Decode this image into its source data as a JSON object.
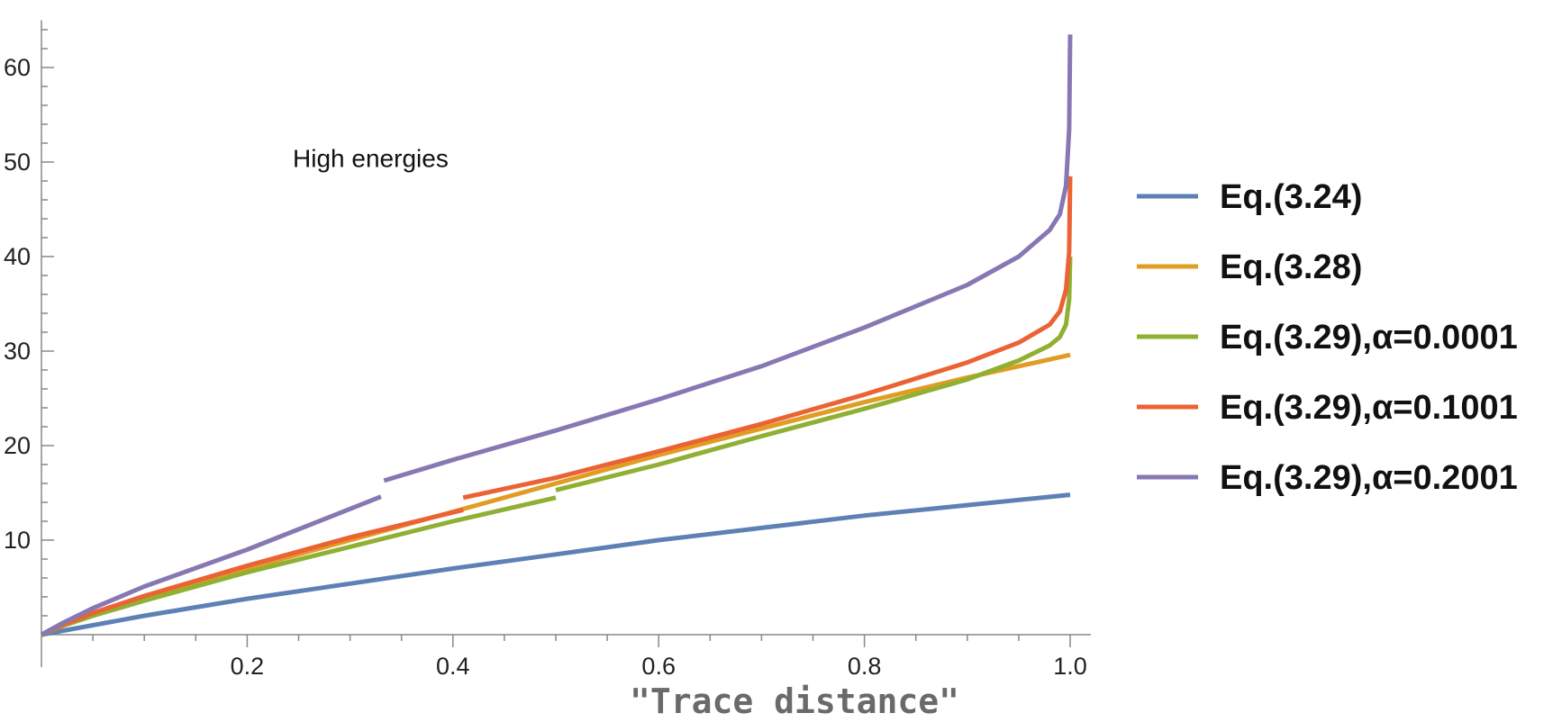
{
  "chart_data": {
    "type": "line",
    "title": "",
    "xlabel": "\"Trace distance\"",
    "ylabel": "",
    "xlim": [
      0,
      1.02
    ],
    "ylim": [
      0,
      65
    ],
    "xticks": [
      {
        "value": 0.2,
        "label": "0.2"
      },
      {
        "value": 0.4,
        "label": "0.4"
      },
      {
        "value": 0.6,
        "label": "0.6"
      },
      {
        "value": 0.8,
        "label": "0.8"
      },
      {
        "value": 1.0,
        "label": "1.0"
      }
    ],
    "yticks": [
      {
        "value": 10,
        "label": "10"
      },
      {
        "value": 20,
        "label": "20"
      },
      {
        "value": 30,
        "label": "30"
      },
      {
        "value": 40,
        "label": "40"
      },
      {
        "value": 50,
        "label": "50"
      },
      {
        "value": 60,
        "label": "60"
      }
    ],
    "grid": false,
    "legend_position": "right",
    "annotations": [
      {
        "text": "High energies",
        "x": 0.32,
        "y": 49.5
      }
    ],
    "series": [
      {
        "name": "Eq.(3.24)",
        "color": "#5E81B5",
        "segments": [
          [
            [
              0,
              0
            ],
            [
              0.1,
              2.0
            ],
            [
              0.2,
              3.8
            ],
            [
              0.3,
              5.4
            ],
            [
              0.4,
              7.0
            ],
            [
              0.5,
              8.5
            ],
            [
              0.6,
              10.0
            ],
            [
              0.7,
              11.3
            ],
            [
              0.8,
              12.6
            ],
            [
              0.9,
              13.7
            ],
            [
              1.0,
              14.8
            ]
          ]
        ]
      },
      {
        "name": "Eq.(3.28)",
        "color": "#E19C24",
        "segments": [
          [
            [
              0,
              0
            ],
            [
              0.02,
              1.0
            ],
            [
              0.05,
              2.2
            ],
            [
              0.1,
              3.9
            ],
            [
              0.2,
              7.0
            ],
            [
              0.3,
              10.0
            ],
            [
              0.4,
              13.0
            ],
            [
              0.5,
              16.0
            ],
            [
              0.6,
              19.0
            ],
            [
              0.7,
              21.8
            ],
            [
              0.8,
              24.6
            ],
            [
              0.9,
              27.2
            ],
            [
              1.0,
              29.6
            ]
          ]
        ]
      },
      {
        "name": "Eq.(3.29),α=0.0001",
        "color": "#8FB032",
        "segments": [
          [
            [
              0,
              0
            ],
            [
              0.02,
              0.9
            ],
            [
              0.05,
              2.0
            ],
            [
              0.1,
              3.6
            ],
            [
              0.2,
              6.6
            ],
            [
              0.3,
              9.3
            ],
            [
              0.4,
              12.0
            ],
            [
              0.5,
              14.5
            ]
          ],
          [
            [
              0.5,
              15.3
            ],
            [
              0.6,
              18.0
            ],
            [
              0.7,
              21.0
            ],
            [
              0.8,
              23.9
            ],
            [
              0.9,
              27.0
            ],
            [
              0.95,
              29.0
            ],
            [
              0.98,
              30.6
            ],
            [
              0.99,
              31.5
            ],
            [
              0.996,
              32.8
            ],
            [
              0.999,
              35.5
            ],
            [
              1.0,
              40.0
            ]
          ]
        ]
      },
      {
        "name": "Eq.(3.29),α=0.1001",
        "color": "#EB6235",
        "segments": [
          [
            [
              0,
              0
            ],
            [
              0.02,
              1.0
            ],
            [
              0.05,
              2.3
            ],
            [
              0.1,
              4.1
            ],
            [
              0.2,
              7.3
            ],
            [
              0.3,
              10.3
            ],
            [
              0.41,
              13.2
            ]
          ],
          [
            [
              0.41,
              14.5
            ],
            [
              0.5,
              16.6
            ],
            [
              0.6,
              19.4
            ],
            [
              0.7,
              22.3
            ],
            [
              0.8,
              25.4
            ],
            [
              0.9,
              28.8
            ],
            [
              0.95,
              30.9
            ],
            [
              0.98,
              32.8
            ],
            [
              0.99,
              34.2
            ],
            [
              0.996,
              36.5
            ],
            [
              0.999,
              40.5
            ],
            [
              1.0,
              48.5
            ]
          ]
        ]
      },
      {
        "name": "Eq.(3.29),α=0.2001",
        "color": "#8778B3",
        "segments": [
          [
            [
              0,
              0
            ],
            [
              0.02,
              1.2
            ],
            [
              0.05,
              2.8
            ],
            [
              0.1,
              5.1
            ],
            [
              0.2,
              9.0
            ],
            [
              0.33,
              14.6
            ]
          ],
          [
            [
              0.333,
              16.3
            ],
            [
              0.4,
              18.5
            ],
            [
              0.5,
              21.6
            ],
            [
              0.6,
              24.9
            ],
            [
              0.7,
              28.4
            ],
            [
              0.8,
              32.5
            ],
            [
              0.9,
              37.0
            ],
            [
              0.95,
              40.0
            ],
            [
              0.98,
              42.8
            ],
            [
              0.99,
              44.5
            ],
            [
              0.996,
              47.5
            ],
            [
              0.999,
              53.5
            ],
            [
              1.0,
              63.5
            ]
          ]
        ]
      }
    ]
  }
}
